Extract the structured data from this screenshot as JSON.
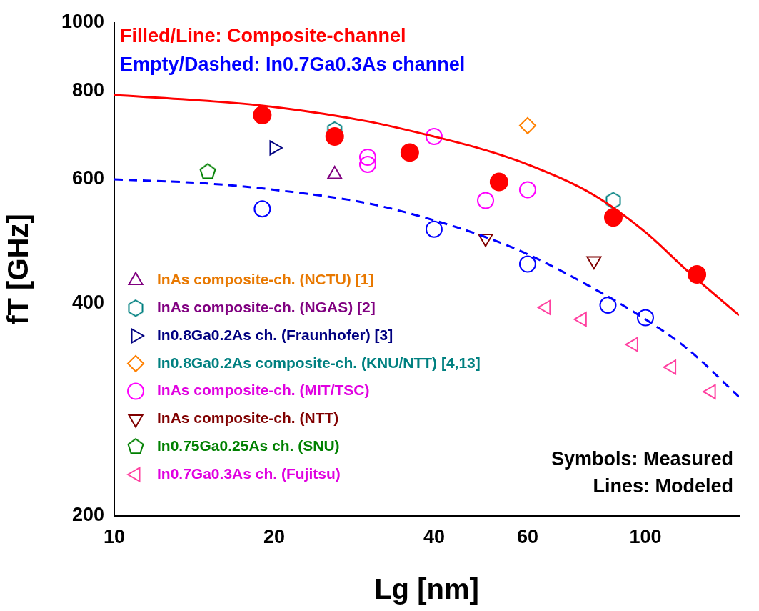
{
  "chart_data": {
    "type": "scatter",
    "x_label": "Lg [nm]",
    "y_label": "fT [GHz]",
    "log": true,
    "grid": false,
    "legend": "lower left",
    "xlim": [
      10,
      150
    ],
    "xticks": [
      10,
      20,
      40,
      60,
      100
    ],
    "ylim": [
      200,
      1000
    ],
    "yticks": [
      200,
      400,
      600,
      800,
      1000
    ],
    "annotations": [
      {
        "text": "Filled/Line: Composite-channel",
        "color": "#ff0000"
      },
      {
        "text": "Empty/Dashed: In0.7Ga0.3As channel",
        "color": "#0000ff"
      },
      {
        "text": "Symbols: Measured",
        "color": "#000000"
      },
      {
        "text": "Lines: Modeled",
        "color": "#000000"
      }
    ],
    "series": [
      {
        "type": "line",
        "line_style": "solid",
        "color": "#ff0000",
        "x": [
          10,
          15,
          20,
          30,
          40,
          50,
          60,
          80,
          100,
          120,
          150
        ],
        "values": [
          790,
          775,
          760,
          725,
          690,
          660,
          630,
          570,
          505,
          445,
          385
        ]
      },
      {
        "type": "line",
        "line_style": "dashed",
        "color": "#0000ff",
        "x": [
          10,
          15,
          20,
          30,
          40,
          50,
          60,
          80,
          100,
          120,
          150
        ],
        "values": [
          600,
          592,
          580,
          555,
          525,
          497,
          470,
          420,
          380,
          345,
          295
        ]
      },
      {
        "type": "scatter",
        "marker": "filled circle",
        "color": "#ff0000",
        "x": [
          19,
          26,
          36,
          53,
          87,
          125
        ],
        "values": [
          740,
          690,
          655,
          595,
          530,
          440
        ]
      },
      {
        "type": "scatter",
        "marker": "circle",
        "color": "#0000ff",
        "x": [
          19,
          40,
          60,
          85,
          100
        ],
        "values": [
          545,
          510,
          455,
          398,
          382
        ]
      },
      {
        "name": "InAs composite-ch. (NCTU) [1]",
        "type": "scatter",
        "marker": "triangle-up",
        "color": "#800080",
        "x": [
          26
        ],
        "values": [
          610
        ]
      },
      {
        "name": "InAs composite-ch. (NGAS) [2]",
        "type": "scatter",
        "marker": "hexagon",
        "color": "#008080",
        "x": [
          26,
          87
        ],
        "values": [
          705,
          560
        ]
      },
      {
        "name": "In0.8Ga0.2As ch. (Fraunhofer) [3]",
        "type": "scatter",
        "marker": "triangle-right",
        "color": "#000080",
        "x": [
          20
        ],
        "values": [
          665
        ]
      },
      {
        "name": "In0.8Ga0.2As composite-ch. (KNU/NTT) [4,13]",
        "type": "scatter",
        "marker": "diamond",
        "color": "#ff8000",
        "x": [
          60
        ],
        "values": [
          715
        ]
      },
      {
        "name": "InAs composite-ch. (MIT/TSC)",
        "type": "scatter",
        "marker": "circle",
        "color": "#ff00ff",
        "x": [
          30,
          30,
          40,
          50,
          60
        ],
        "values": [
          630,
          645,
          690,
          560,
          580
        ]
      },
      {
        "name": "InAs composite-ch. (NTT)",
        "type": "scatter",
        "marker": "triangle-down",
        "color": "#800000",
        "x": [
          50,
          80
        ],
        "values": [
          495,
          460
        ]
      },
      {
        "name": "In0.75Ga0.25As ch. (SNU)",
        "type": "scatter",
        "marker": "pentagon",
        "color": "#008000",
        "x": [
          15
        ],
        "values": [
          615
        ]
      },
      {
        "name": "In0.7Ga0.3As ch. (Fujitsu)",
        "type": "scatter",
        "marker": "triangle-left",
        "color": "#ff40a0",
        "x": [
          65,
          76,
          95,
          112,
          133
        ],
        "values": [
          395,
          380,
          350,
          325,
          300
        ]
      }
    ]
  }
}
